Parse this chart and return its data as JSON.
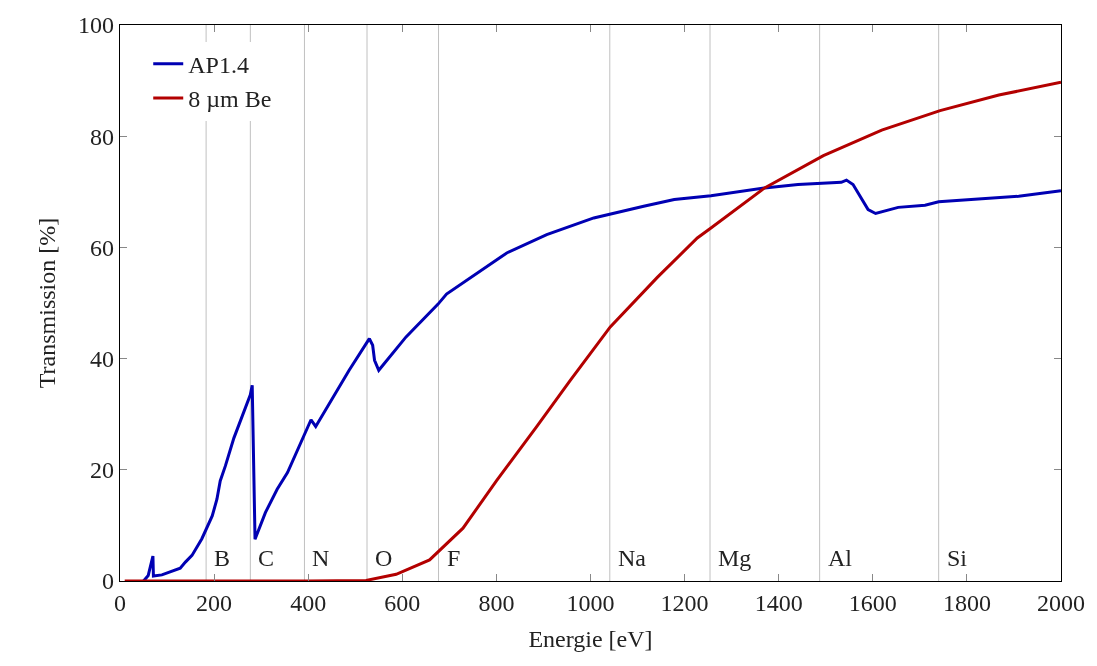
{
  "chart_data": {
    "type": "line",
    "xlabel": "Energie [eV]",
    "ylabel": "Transmission [%]",
    "xlim": [
      0,
      2000
    ],
    "ylim": [
      0,
      100
    ],
    "xticks": [
      0,
      200,
      400,
      600,
      800,
      1000,
      1200,
      1400,
      1600,
      1800,
      2000
    ],
    "yticks": [
      0,
      20,
      40,
      60,
      80,
      100
    ],
    "grid": false,
    "legend": "top left",
    "line_style": "solid",
    "marker": "none",
    "series": [
      {
        "name": "AP1.4",
        "color": "#0000b3",
        "x": [
          50,
          60,
          70,
          71,
          89,
          128,
          139,
          153,
          174,
          196,
          206,
          213,
          224,
          242,
          277,
          281,
          287,
          309,
          334,
          356,
          406,
          416,
          487,
          530,
          537,
          541,
          550,
          608,
          676,
          694,
          822,
          907,
          1007,
          1113,
          1178,
          1256,
          1370,
          1441,
          1533,
          1544,
          1558,
          1590,
          1606,
          1654,
          1711,
          1740,
          1910,
          2000
        ],
        "values": [
          0,
          1.0,
          4.5,
          0.9,
          1.1,
          2.3,
          3.4,
          4.6,
          7.6,
          11.7,
          14.7,
          18,
          20.7,
          25.7,
          33.5,
          35.2,
          7.5,
          12.3,
          16.5,
          19.5,
          29,
          27.8,
          37.9,
          43.6,
          42.4,
          39.7,
          37.9,
          43.9,
          49.8,
          51.6,
          59,
          62.3,
          65.3,
          67.4,
          68.6,
          69.3,
          70.7,
          71.3,
          71.7,
          72.1,
          71.3,
          66.8,
          66.1,
          67.2,
          67.6,
          68.2,
          69.2,
          70.2
        ]
      },
      {
        "name": "8 µm Be",
        "color": "#b30000",
        "x": [
          10,
          400,
          523,
          587,
          658,
          729,
          800,
          886,
          957,
          1042,
          1142,
          1227,
          1256,
          1370,
          1495,
          1619,
          1743,
          1868,
          2000
        ],
        "values": [
          0,
          0,
          0.1,
          1.2,
          3.8,
          9.5,
          18,
          27.8,
          36.1,
          45.7,
          54.6,
          61.7,
          63.5,
          70.7,
          76.5,
          81.1,
          84.6,
          87.4,
          89.7
        ]
      }
    ],
    "ref_lines": [
      {
        "axis": "x",
        "value": 183,
        "label": "B",
        "color": "#c0c0c0"
      },
      {
        "axis": "x",
        "value": 277,
        "label": "C",
        "color": "#c0c0c0"
      },
      {
        "axis": "x",
        "value": 392,
        "label": "N",
        "color": "#c0c0c0"
      },
      {
        "axis": "x",
        "value": 525,
        "label": "O",
        "color": "#c0c0c0"
      },
      {
        "axis": "x",
        "value": 677,
        "label": "F",
        "color": "#c0c0c0"
      },
      {
        "axis": "x",
        "value": 1041,
        "label": "Na",
        "color": "#c0c0c0"
      },
      {
        "axis": "x",
        "value": 1254,
        "label": "Mg",
        "color": "#c0c0c0"
      },
      {
        "axis": "x",
        "value": 1487,
        "label": "Al",
        "color": "#c0c0c0"
      },
      {
        "axis": "x",
        "value": 1740,
        "label": "Si",
        "color": "#c0c0c0"
      }
    ]
  }
}
